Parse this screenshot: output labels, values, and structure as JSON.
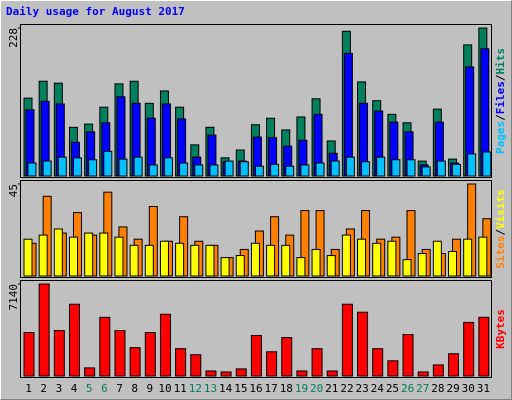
{
  "title": "Daily usage for August 2017",
  "x_axis": {
    "categories": [
      "1",
      "2",
      "3",
      "4",
      "5",
      "6",
      "7",
      "8",
      "9",
      "10",
      "11",
      "12",
      "13",
      "14",
      "15",
      "16",
      "17",
      "18",
      "19",
      "20",
      "21",
      "22",
      "23",
      "24",
      "25",
      "26",
      "27",
      "28",
      "29",
      "30",
      "31"
    ],
    "label_color": "#000000",
    "weekend_color": "#00805c",
    "weekend_categories": [
      "5",
      "6",
      "12",
      "13",
      "19",
      "20",
      "26",
      "27"
    ]
  },
  "chart_data": [
    {
      "type": "bar",
      "ylim": [
        0,
        228
      ],
      "yticks": [
        228
      ],
      "legend_separator": "/",
      "series": [
        {
          "name": "Hits",
          "color": "#00805c",
          "values": [
            120,
            146,
            143,
            75,
            80,
            106,
            142,
            146,
            112,
            131,
            106,
            48,
            75,
            28,
            40,
            79,
            89,
            71,
            91,
            119,
            54,
            223,
            145,
            116,
            95,
            82,
            23,
            103,
            26,
            202,
            228
          ]
        },
        {
          "name": "Files",
          "color": "#0000ff",
          "values": [
            102,
            115,
            111,
            52,
            68,
            82,
            122,
            112,
            89,
            111,
            88,
            29,
            63,
            22,
            23,
            60,
            59,
            46,
            55,
            95,
            35,
            189,
            112,
            100,
            83,
            68,
            17,
            83,
            20,
            168,
            196
          ]
        },
        {
          "name": "Pages",
          "color": "#00c0ff",
          "values": [
            20,
            23,
            29,
            28,
            25,
            38,
            26,
            29,
            17,
            28,
            20,
            17,
            17,
            23,
            22,
            15,
            18,
            15,
            17,
            20,
            23,
            29,
            22,
            29,
            25,
            25,
            14,
            23,
            18,
            34,
            37
          ]
        }
      ]
    },
    {
      "type": "bar",
      "ylim": [
        0,
        45
      ],
      "yticks": [
        45
      ],
      "legend_separator": "/",
      "series": [
        {
          "name": "Visits",
          "color": "#ffff00",
          "values": [
            18,
            20,
            23,
            19,
            21,
            21,
            19,
            15,
            15,
            17,
            16,
            15,
            15,
            9,
            10,
            16,
            15,
            15,
            9,
            13,
            10,
            20,
            18,
            16,
            17,
            8,
            11,
            17,
            12,
            18,
            19
          ]
        },
        {
          "name": "Sites",
          "color": "#ff8000",
          "values": [
            16,
            39,
            21,
            31,
            20,
            41,
            24,
            18,
            34,
            17,
            29,
            17,
            15,
            9,
            13,
            22,
            29,
            20,
            32,
            32,
            13,
            23,
            32,
            18,
            19,
            32,
            13,
            11,
            18,
            45,
            28
          ]
        }
      ]
    },
    {
      "type": "bar",
      "ylim": [
        0,
        7140
      ],
      "yticks": [
        7140
      ],
      "series": [
        {
          "name": "KBytes",
          "color": "#ff0000",
          "values": [
            3375,
            7140,
            3530,
            5570,
            630,
            4555,
            3530,
            2200,
            3375,
            4790,
            2120,
            1650,
            390,
            315,
            550,
            3140,
            1880,
            2980,
            390,
            2120,
            390,
            5570,
            4950,
            2120,
            1180,
            3220,
            315,
            860,
            1730,
            4160,
            4555
          ]
        }
      ]
    }
  ]
}
